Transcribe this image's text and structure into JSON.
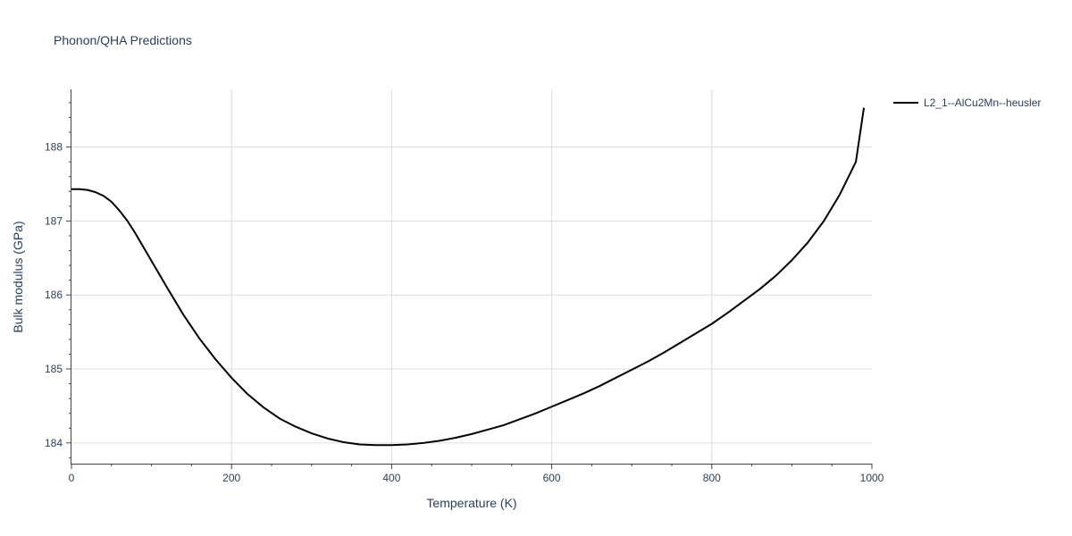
{
  "chart_data": {
    "type": "line",
    "title": "Phonon/QHA Predictions",
    "xlabel": "Temperature (K)",
    "ylabel": "Bulk modulus (GPa)",
    "xlim": [
      0,
      1000
    ],
    "ylim": [
      183.72,
      188.78
    ],
    "x_ticks": [
      0,
      200,
      400,
      600,
      800,
      1000
    ],
    "y_ticks": [
      184,
      185,
      186,
      187,
      188
    ],
    "grid": true,
    "legend_position": "top-right",
    "series": [
      {
        "name": "L2_1--AlCu2Mn--heusler",
        "color": "#000000",
        "x": [
          0,
          10,
          20,
          30,
          40,
          50,
          60,
          70,
          80,
          100,
          120,
          140,
          160,
          180,
          200,
          220,
          240,
          260,
          280,
          300,
          320,
          340,
          360,
          380,
          400,
          420,
          440,
          460,
          480,
          500,
          520,
          540,
          560,
          580,
          600,
          620,
          640,
          660,
          680,
          700,
          720,
          740,
          760,
          780,
          800,
          820,
          840,
          860,
          880,
          900,
          920,
          940,
          960,
          980,
          990
        ],
        "y": [
          187.43,
          187.43,
          187.42,
          187.39,
          187.34,
          187.26,
          187.14,
          187.0,
          186.83,
          186.46,
          186.09,
          185.73,
          185.41,
          185.13,
          184.88,
          184.66,
          184.48,
          184.33,
          184.22,
          184.13,
          184.06,
          184.01,
          183.98,
          183.97,
          183.97,
          183.98,
          184.0,
          184.03,
          184.07,
          184.12,
          184.18,
          184.24,
          184.32,
          184.4,
          184.49,
          184.58,
          184.67,
          184.77,
          184.88,
          184.99,
          185.1,
          185.22,
          185.35,
          185.48,
          185.61,
          185.76,
          185.92,
          186.08,
          186.26,
          186.47,
          186.71,
          187.0,
          187.36,
          187.8,
          188.53
        ]
      }
    ]
  }
}
